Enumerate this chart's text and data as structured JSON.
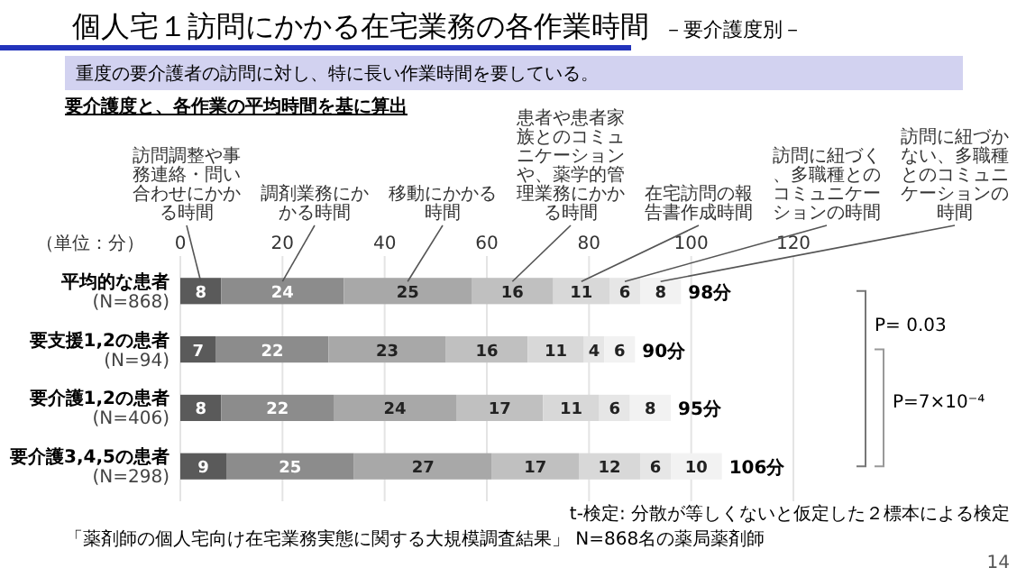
{
  "chart_data": {
    "type": "bar",
    "orientation": "horizontal",
    "stacked": true,
    "title": "個人宅１訪問にかかる在宅業務の各作業時間",
    "subtitle": "－要介護度別－",
    "xlabel": "（単位：分）",
    "categories": [
      "平均的な患者\n(N=868)",
      "要支援1,2の患者\n(N=94)",
      "要介護1,2の患者\n(N=406)",
      "要介護3,4,5の患者\n(N=298)"
    ],
    "series": [
      {
        "name": "訪問調整や事務連絡・問い合わせにかかる時間",
        "color": "#5a5a5a",
        "values": [
          8,
          7,
          8,
          9
        ]
      },
      {
        "name": "調剤業務にかかる時間",
        "color": "#8c8c8c",
        "values": [
          24,
          22,
          22,
          25
        ]
      },
      {
        "name": "移動にかかる時間",
        "color": "#a8a8a8",
        "values": [
          25,
          23,
          24,
          27
        ]
      },
      {
        "name": "患者や患者家族とのコミュニケーションや、薬学的管理業務にかかる時間",
        "color": "#c0c0c0",
        "values": [
          16,
          16,
          17,
          17
        ]
      },
      {
        "name": "在宅訪問の報告書作成時間",
        "color": "#d8d8d8",
        "values": [
          11,
          11,
          11,
          12
        ]
      },
      {
        "name": "訪問に紐づく、多職種とのコミュニケーションの時間",
        "color": "#e6e6e6",
        "values": [
          6,
          4,
          6,
          6
        ]
      },
      {
        "name": "訪問に紐づかない、多職種とのコミュニケーションの時間",
        "color": "#f2f2f2",
        "values": [
          8,
          6,
          8,
          10
        ]
      }
    ],
    "xlim": [
      0,
      120
    ],
    "xticks": [
      0,
      20,
      40,
      60,
      80,
      100,
      120
    ],
    "grid": "x",
    "legend": false,
    "data_labels": true,
    "totals": [
      "98分",
      "90分",
      "95分",
      "106分"
    ],
    "annotations": [
      "重度の要介護者の訪問に対し、特に長い作業時間を要している。",
      "要介護度と、各作業の平均時間を基に算出",
      "P= 0.03",
      "P=7×10⁻⁴",
      "t-検定: 分散が等しくないと仮定した２標本による検定",
      "「薬剤師の個人宅向け在宅業務実態に関する大規模調査結果」 N=868名の薬局薬剤師",
      "14"
    ]
  }
}
